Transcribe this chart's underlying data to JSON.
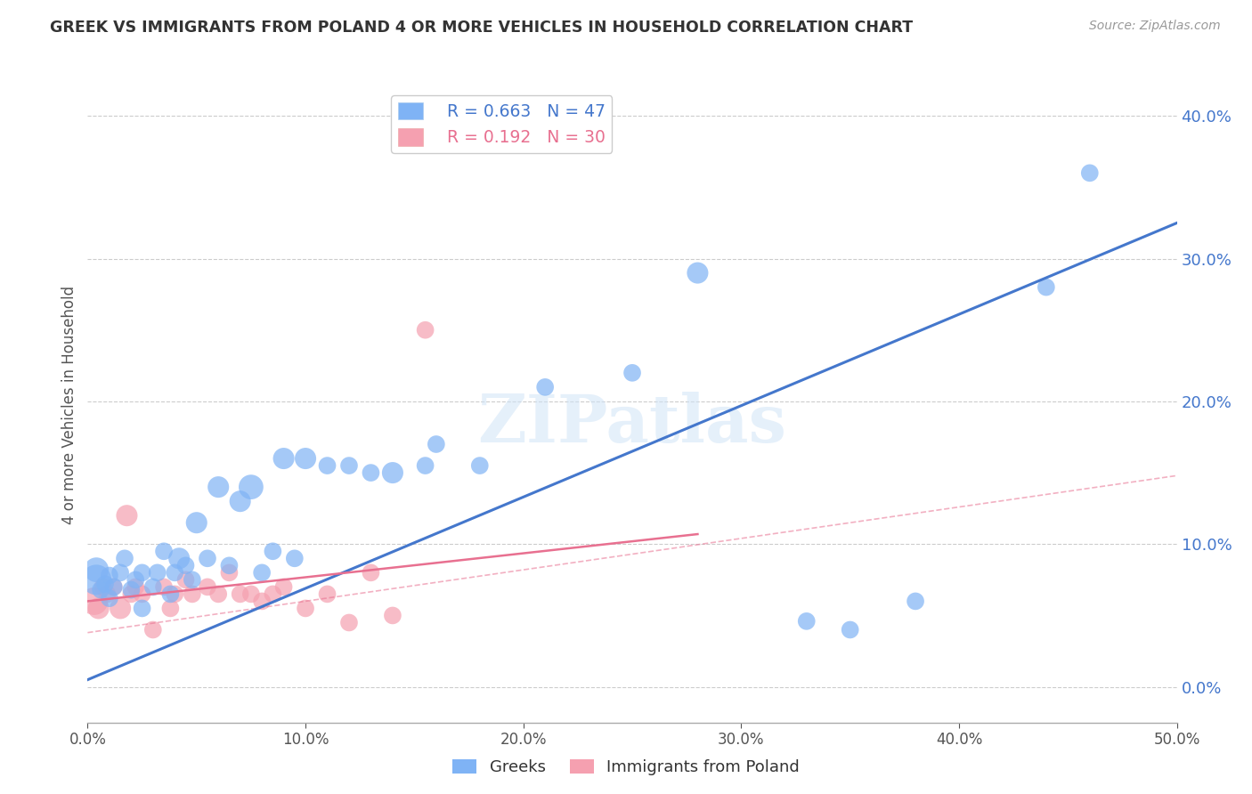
{
  "title": "GREEK VS IMMIGRANTS FROM POLAND 4 OR MORE VEHICLES IN HOUSEHOLD CORRELATION CHART",
  "source": "Source: ZipAtlas.com",
  "ylabel": "4 or more Vehicles in Household",
  "xlim": [
    0.0,
    0.5
  ],
  "ylim": [
    -0.025,
    0.42
  ],
  "xticks": [
    0.0,
    0.1,
    0.2,
    0.3,
    0.4,
    0.5
  ],
  "yticks": [
    0.0,
    0.1,
    0.2,
    0.3,
    0.4
  ],
  "background_color": "#ffffff",
  "grid_color": "#cccccc",
  "blue_scatter_color": "#7fb3f5",
  "pink_scatter_color": "#f5a0b0",
  "blue_line_color": "#4477cc",
  "pink_line_color": "#e87090",
  "tick_label_color": "#4477cc",
  "r_blue": 0.663,
  "n_blue": 47,
  "r_pink": 0.192,
  "n_pink": 30,
  "legend_label_blue": "Greeks",
  "legend_label_pink": "Immigrants from Poland",
  "blue_scatter_x": [
    0.004,
    0.004,
    0.006,
    0.008,
    0.01,
    0.01,
    0.012,
    0.015,
    0.017,
    0.02,
    0.022,
    0.025,
    0.025,
    0.03,
    0.032,
    0.035,
    0.038,
    0.04,
    0.042,
    0.045,
    0.048,
    0.05,
    0.055,
    0.06,
    0.065,
    0.07,
    0.075,
    0.08,
    0.085,
    0.09,
    0.095,
    0.1,
    0.11,
    0.12,
    0.13,
    0.14,
    0.155,
    0.16,
    0.18,
    0.21,
    0.25,
    0.28,
    0.33,
    0.35,
    0.38,
    0.44,
    0.46
  ],
  "blue_scatter_y": [
    0.075,
    0.082,
    0.068,
    0.072,
    0.078,
    0.062,
    0.07,
    0.08,
    0.09,
    0.068,
    0.075,
    0.08,
    0.055,
    0.07,
    0.08,
    0.095,
    0.065,
    0.08,
    0.09,
    0.085,
    0.075,
    0.115,
    0.09,
    0.14,
    0.085,
    0.13,
    0.14,
    0.08,
    0.095,
    0.16,
    0.09,
    0.16,
    0.155,
    0.155,
    0.15,
    0.15,
    0.155,
    0.17,
    0.155,
    0.21,
    0.22,
    0.29,
    0.046,
    0.04,
    0.06,
    0.28,
    0.36
  ],
  "blue_scatter_s": [
    600,
    400,
    200,
    200,
    200,
    200,
    200,
    200,
    200,
    200,
    200,
    200,
    200,
    200,
    200,
    200,
    200,
    200,
    300,
    200,
    200,
    300,
    200,
    300,
    200,
    300,
    400,
    200,
    200,
    300,
    200,
    300,
    200,
    200,
    200,
    300,
    200,
    200,
    200,
    200,
    200,
    300,
    200,
    200,
    200,
    200,
    200
  ],
  "pink_scatter_x": [
    0.003,
    0.005,
    0.007,
    0.009,
    0.012,
    0.015,
    0.018,
    0.02,
    0.022,
    0.025,
    0.03,
    0.035,
    0.038,
    0.04,
    0.045,
    0.048,
    0.055,
    0.06,
    0.065,
    0.07,
    0.075,
    0.08,
    0.085,
    0.09,
    0.1,
    0.11,
    0.12,
    0.13,
    0.14,
    0.155
  ],
  "pink_scatter_y": [
    0.06,
    0.055,
    0.07,
    0.065,
    0.07,
    0.055,
    0.12,
    0.065,
    0.07,
    0.065,
    0.04,
    0.07,
    0.055,
    0.065,
    0.075,
    0.065,
    0.07,
    0.065,
    0.08,
    0.065,
    0.065,
    0.06,
    0.065,
    0.07,
    0.055,
    0.065,
    0.045,
    0.08,
    0.05,
    0.25
  ],
  "pink_scatter_s": [
    500,
    300,
    200,
    200,
    200,
    300,
    300,
    200,
    200,
    200,
    200,
    200,
    200,
    200,
    200,
    200,
    200,
    200,
    200,
    200,
    200,
    200,
    200,
    200,
    200,
    200,
    200,
    200,
    200,
    200
  ],
  "blue_line_x": [
    0.0,
    0.5
  ],
  "blue_line_y": [
    0.005,
    0.325
  ],
  "pink_solid_line_x": [
    0.0,
    0.28
  ],
  "pink_solid_line_y": [
    0.06,
    0.107
  ],
  "pink_dash_line_x": [
    0.0,
    0.5
  ],
  "pink_dash_line_y": [
    0.038,
    0.148
  ]
}
